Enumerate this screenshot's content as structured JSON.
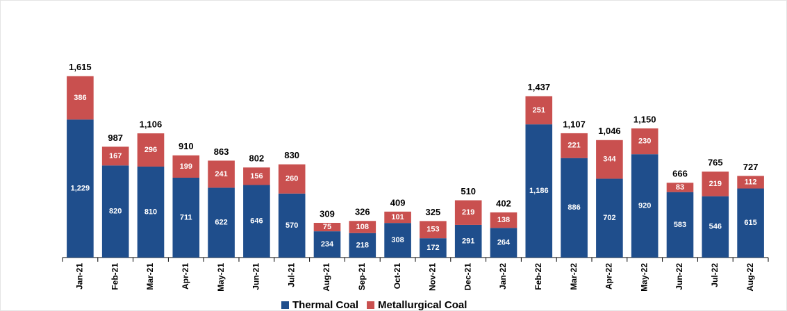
{
  "chart_data": {
    "type": "stacked_bar",
    "categories": [
      "Jan-21",
      "Feb-21",
      "Mar-21",
      "Apr-21",
      "May-21",
      "Jun-21",
      "Jul-21",
      "Aug-21",
      "Sep-21",
      "Oct-21",
      "Nov-21",
      "Dec-21",
      "Jan-22",
      "Feb-22",
      "Mar-22",
      "Apr-22",
      "May-22",
      "Jun-22",
      "Jul-22",
      "Aug-22"
    ],
    "series": [
      {
        "name": "Thermal Coal",
        "color": "#1f4e8c",
        "values": [
          1229,
          820,
          810,
          711,
          622,
          646,
          570,
          234,
          218,
          308,
          172,
          291,
          264,
          1186,
          886,
          702,
          920,
          583,
          546,
          615
        ],
        "value_labels": [
          "1,229",
          "820",
          "810",
          "711",
          "622",
          "646",
          "570",
          "234",
          "218",
          "308",
          "172",
          "291",
          "264",
          "1,186",
          "886",
          "702",
          "920",
          "583",
          "546",
          "615"
        ]
      },
      {
        "name": "Metallurgical Coal",
        "color": "#c9504f",
        "values": [
          386,
          167,
          296,
          199,
          241,
          156,
          260,
          75,
          108,
          101,
          153,
          219,
          138,
          251,
          221,
          344,
          230,
          83,
          219,
          112
        ]
      }
    ],
    "total_labels": [
      "1,615",
      "987",
      "1,106",
      "910",
      "863",
      "802",
      "830",
      "309",
      "326",
      "409",
      "325",
      "510",
      "402",
      "1,437",
      "1,107",
      "1,046",
      "1,150",
      "666",
      "765",
      "727"
    ],
    "ylim": [
      0,
      1700
    ],
    "legend": "bottom"
  }
}
